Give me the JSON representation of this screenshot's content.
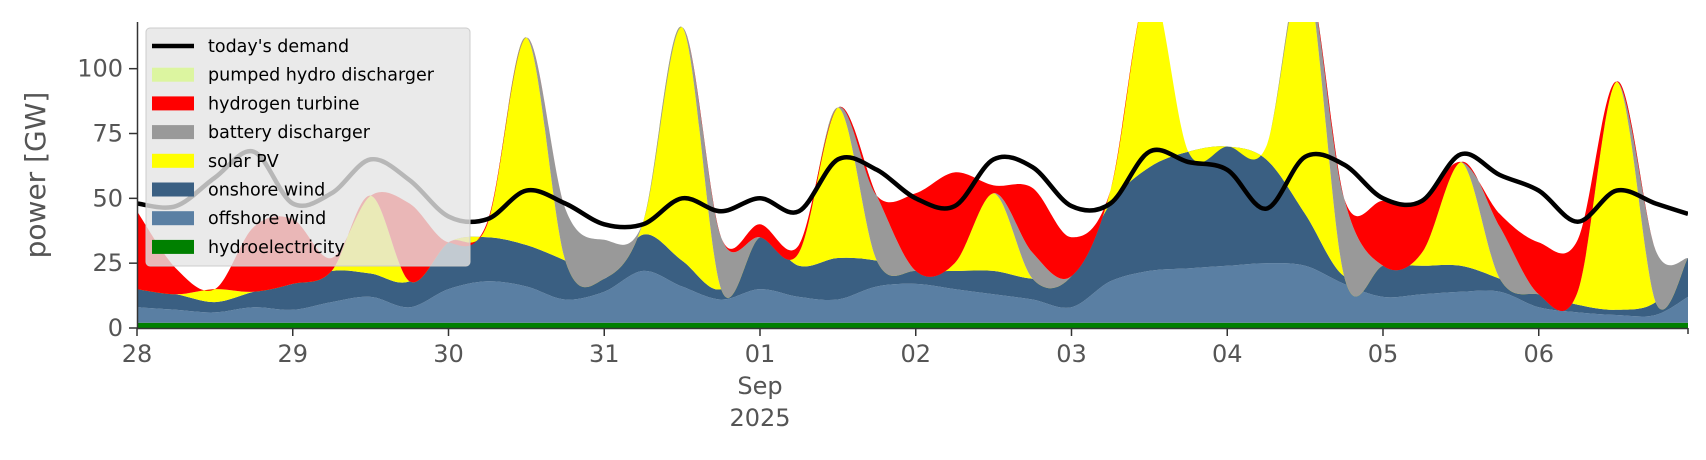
{
  "chart_data": {
    "type": "area",
    "ylabel": "power [GW]",
    "ylim": [
      0,
      118
    ],
    "xlim": [
      "2025-08-28T00:00",
      "2025-09-06T23:00"
    ],
    "yticks": [
      0,
      25,
      50,
      75,
      100
    ],
    "xticks": [
      {
        "at": "2025-08-28",
        "label": "28"
      },
      {
        "at": "2025-08-29",
        "label": "29"
      },
      {
        "at": "2025-08-30",
        "label": "30"
      },
      {
        "at": "2025-08-31",
        "label": "31"
      },
      {
        "at": "2025-09-01",
        "label": "01",
        "sub1": "Sep",
        "sub2": "2025"
      },
      {
        "at": "2025-09-02",
        "label": "02"
      },
      {
        "at": "2025-09-03",
        "label": "03"
      },
      {
        "at": "2025-09-04",
        "label": "04"
      },
      {
        "at": "2025-09-05",
        "label": "05"
      },
      {
        "at": "2025-09-06",
        "label": "06"
      }
    ],
    "grid": false,
    "legend_position": "top-left",
    "x": [
      "2025-08-28T00:00",
      "2025-08-28T06:00",
      "2025-08-28T12:00",
      "2025-08-28T18:00",
      "2025-08-29T00:00",
      "2025-08-29T06:00",
      "2025-08-29T12:00",
      "2025-08-29T18:00",
      "2025-08-30T00:00",
      "2025-08-30T06:00",
      "2025-08-30T12:00",
      "2025-08-30T18:00",
      "2025-08-31T00:00",
      "2025-08-31T06:00",
      "2025-08-31T12:00",
      "2025-08-31T18:00",
      "2025-09-01T00:00",
      "2025-09-01T06:00",
      "2025-09-01T12:00",
      "2025-09-01T18:00",
      "2025-09-02T00:00",
      "2025-09-02T06:00",
      "2025-09-02T12:00",
      "2025-09-02T18:00",
      "2025-09-03T00:00",
      "2025-09-03T06:00",
      "2025-09-03T12:00",
      "2025-09-03T18:00",
      "2025-09-04T00:00",
      "2025-09-04T06:00",
      "2025-09-04T12:00",
      "2025-09-04T18:00",
      "2025-09-05T00:00",
      "2025-09-05T06:00",
      "2025-09-05T12:00",
      "2025-09-05T18:00",
      "2025-09-06T00:00",
      "2025-09-06T06:00",
      "2025-09-06T12:00",
      "2025-09-06T18:00",
      "2025-09-06T23:00"
    ],
    "series": [
      {
        "name": "hydroelectricity",
        "color": "#008000",
        "values": [
          2,
          2,
          2,
          2,
          2,
          2,
          2,
          2,
          2,
          2,
          2,
          2,
          2,
          2,
          2,
          2,
          2,
          2,
          2,
          2,
          2,
          2,
          2,
          2,
          2,
          2,
          2,
          2,
          2,
          2,
          2,
          2,
          2,
          2,
          2,
          2,
          2,
          2,
          2,
          2,
          2
        ]
      },
      {
        "name": "offshore wind",
        "color": "#5a7fa3",
        "values": [
          6,
          5,
          4,
          6,
          5,
          8,
          10,
          6,
          13,
          16,
          14,
          9,
          12,
          20,
          14,
          9,
          13,
          10,
          9,
          14,
          15,
          13,
          11,
          9,
          6,
          16,
          20,
          21,
          22,
          23,
          22,
          15,
          10,
          11,
          12,
          12,
          6,
          4,
          3,
          3,
          10
        ]
      },
      {
        "name": "onshore wind",
        "color": "#3a5f82",
        "values": [
          7,
          6,
          4,
          6,
          10,
          12,
          9,
          10,
          18,
          17,
          16,
          15,
          5,
          14,
          10,
          4,
          20,
          12,
          16,
          10,
          5,
          7,
          9,
          8,
          12,
          30,
          40,
          45,
          46,
          40,
          20,
          3,
          12,
          11,
          10,
          5,
          5,
          3,
          2,
          5,
          15
        ]
      },
      {
        "name": "solar PV",
        "color": "#ffff00",
        "values": [
          0,
          0,
          5,
          0,
          0,
          0,
          30,
          0,
          0,
          5,
          80,
          0,
          0,
          5,
          90,
          0,
          0,
          5,
          58,
          0,
          0,
          3,
          30,
          0,
          0,
          5,
          70,
          0,
          0,
          5,
          95,
          0,
          0,
          5,
          40,
          0,
          0,
          5,
          88,
          0,
          0
        ]
      },
      {
        "name": "battery discharger",
        "color": "#999999",
        "values": [
          0,
          0,
          0,
          0,
          0,
          0,
          0,
          0,
          0,
          0,
          0,
          20,
          15,
          0,
          0,
          20,
          0,
          0,
          0,
          25,
          0,
          0,
          0,
          10,
          0,
          0,
          0,
          0,
          0,
          0,
          0,
          30,
          0,
          0,
          0,
          20,
          0,
          0,
          0,
          20,
          0
        ]
      },
      {
        "name": "hydrogen turbine",
        "color": "#ff0000",
        "values": [
          30,
          10,
          0,
          25,
          25,
          5,
          0,
          30,
          0,
          1,
          0,
          0,
          0,
          0,
          0,
          0,
          5,
          3,
          0,
          0,
          30,
          35,
          3,
          25,
          15,
          0,
          0,
          0,
          0,
          0,
          0,
          0,
          25,
          20,
          0,
          5,
          20,
          20,
          0,
          0,
          0
        ]
      },
      {
        "name": "pumped hydro discharger",
        "color": "#dcf5a0",
        "values": [
          0,
          0,
          0,
          0,
          0,
          0,
          0,
          0,
          0,
          0,
          0,
          0,
          0,
          0,
          0,
          0,
          0,
          0,
          0,
          0,
          0,
          0,
          0,
          0,
          0,
          0,
          0,
          0,
          0,
          0,
          0,
          0,
          0,
          0,
          0,
          0,
          0,
          0,
          0,
          0,
          0
        ]
      }
    ],
    "demand": {
      "name": "today's demand",
      "color": "#000000",
      "values": [
        48,
        47,
        58,
        68,
        48,
        52,
        65,
        57,
        43,
        42,
        53,
        48,
        40,
        40,
        50,
        45,
        50,
        45,
        65,
        61,
        50,
        47,
        65,
        62,
        47,
        48,
        68,
        64,
        61,
        46,
        66,
        63,
        50,
        49,
        67,
        59,
        53,
        41,
        53,
        48,
        44
      ]
    }
  },
  "legend": {
    "order": [
      "today's demand",
      "pumped hydro discharger",
      "hydrogen turbine",
      "battery discharger",
      "solar PV",
      "onshore wind",
      "offshore wind",
      "hydroelectricity"
    ]
  },
  "colors": {
    "background": "#ffffff",
    "axis": "#555555",
    "legend_frame": "#e5e5e5"
  }
}
